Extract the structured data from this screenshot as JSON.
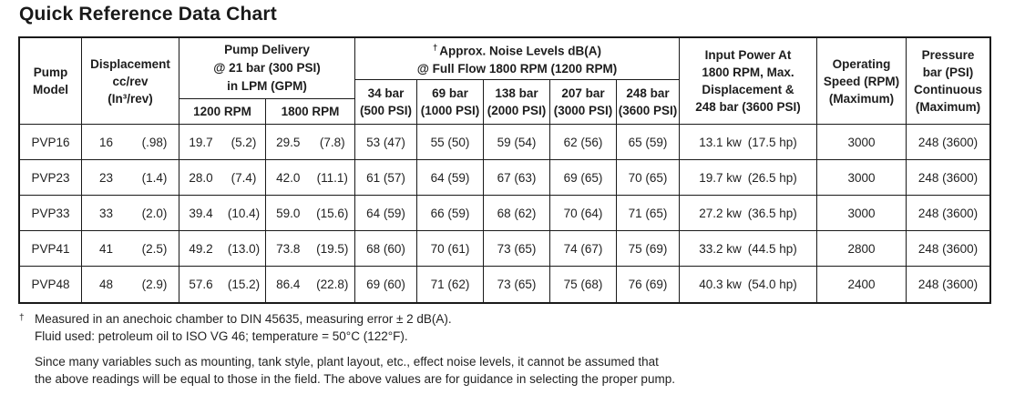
{
  "page": {
    "title": "Quick Reference Data Chart"
  },
  "table": {
    "header": {
      "pump_model": {
        "l1": "Pump",
        "l2": "Model"
      },
      "displacement": {
        "l1": "Displacement",
        "l2": "cc/rev",
        "l3": "(In³/rev)"
      },
      "delivery": {
        "l1": "Pump Delivery",
        "l2": "@ 21 bar (300 PSI)",
        "l3": "in LPM (GPM)",
        "sub_1200": "1200 RPM",
        "sub_1800": "1800 RPM"
      },
      "noise": {
        "dagger": "†",
        "l1": "Approx. Noise Levels dB(A)",
        "l2": "@ Full Flow 1800 RPM (1200 RPM)",
        "subs": [
          {
            "l1": "34 bar",
            "l2": "(500 PSI)"
          },
          {
            "l1": "69 bar",
            "l2": "(1000 PSI)"
          },
          {
            "l1": "138 bar",
            "l2": "(2000 PSI)"
          },
          {
            "l1": "207 bar",
            "l2": "(3000 PSI)"
          },
          {
            "l1": "248 bar",
            "l2": "(3600 PSI)"
          }
        ]
      },
      "input_power": {
        "l1": "Input Power At",
        "l2": "1800 RPM, Max.",
        "l3": "Displacement &",
        "l4": "248 bar (3600 PSI)"
      },
      "operating_speed": {
        "l1": "Operating",
        "l2": "Speed (RPM)",
        "l3": "(Maximum)"
      },
      "pressure": {
        "l1": "Pressure",
        "l2": "bar (PSI)",
        "l3": "Continuous",
        "l4": "(Maximum)"
      }
    },
    "rows": [
      {
        "model": "PVP16",
        "displacement": [
          "16",
          "(.98)"
        ],
        "delivery_1200": [
          "19.7",
          "(5.2)"
        ],
        "delivery_1800": [
          "29.5",
          "(7.8)"
        ],
        "noise": [
          "53 (47)",
          "55 (50)",
          "59 (54)",
          "62 (56)",
          "65 (59)"
        ],
        "input_power": [
          "13.1 kw",
          "(17.5 hp)"
        ],
        "operating_speed": "3000",
        "pressure": "248 (3600)"
      },
      {
        "model": "PVP23",
        "displacement": [
          "23",
          "(1.4)"
        ],
        "delivery_1200": [
          "28.0",
          "(7.4)"
        ],
        "delivery_1800": [
          "42.0",
          "(11.1)"
        ],
        "noise": [
          "61 (57)",
          "64 (59)",
          "67 (63)",
          "69 (65)",
          "70 (65)"
        ],
        "input_power": [
          "19.7 kw",
          "(26.5 hp)"
        ],
        "operating_speed": "3000",
        "pressure": "248 (3600)"
      },
      {
        "model": "PVP33",
        "displacement": [
          "33",
          "(2.0)"
        ],
        "delivery_1200": [
          "39.4",
          "(10.4)"
        ],
        "delivery_1800": [
          "59.0",
          "(15.6)"
        ],
        "noise": [
          "64 (59)",
          "66 (59)",
          "68 (62)",
          "70 (64)",
          "71 (65)"
        ],
        "input_power": [
          "27.2 kw",
          "(36.5 hp)"
        ],
        "operating_speed": "3000",
        "pressure": "248 (3600)"
      },
      {
        "model": "PVP41",
        "displacement": [
          "41",
          "(2.5)"
        ],
        "delivery_1200": [
          "49.2",
          "(13.0)"
        ],
        "delivery_1800": [
          "73.8",
          "(19.5)"
        ],
        "noise": [
          "68 (60)",
          "70 (61)",
          "73 (65)",
          "74 (67)",
          "75 (69)"
        ],
        "input_power": [
          "33.2 kw",
          "(44.5 hp)"
        ],
        "operating_speed": "2800",
        "pressure": "248 (3600)"
      },
      {
        "model": "PVP48",
        "displacement": [
          "48",
          "(2.9)"
        ],
        "delivery_1200": [
          "57.6",
          "(15.2)"
        ],
        "delivery_1800": [
          "86.4",
          "(22.8)"
        ],
        "noise": [
          "69 (60)",
          "71 (62)",
          "73 (65)",
          "75 (68)",
          "76 (69)"
        ],
        "input_power": [
          "40.3 kw",
          "(54.0 hp)"
        ],
        "operating_speed": "2400",
        "pressure": "248 (3600)"
      }
    ]
  },
  "footnote": {
    "dagger": "†",
    "line1": "Measured in an anechoic chamber to DIN 45635, measuring error ± 2 dB(A).",
    "line2": "Fluid used: petroleum oil to ISO VG 46; temperature = 50°C (122°F).",
    "line3": "Since many variables such as mounting, tank style, plant layout, etc., effect noise levels, it cannot be assumed that",
    "line4": "the above readings will be equal to those in the field. The above values are for guidance in selecting the proper pump."
  }
}
